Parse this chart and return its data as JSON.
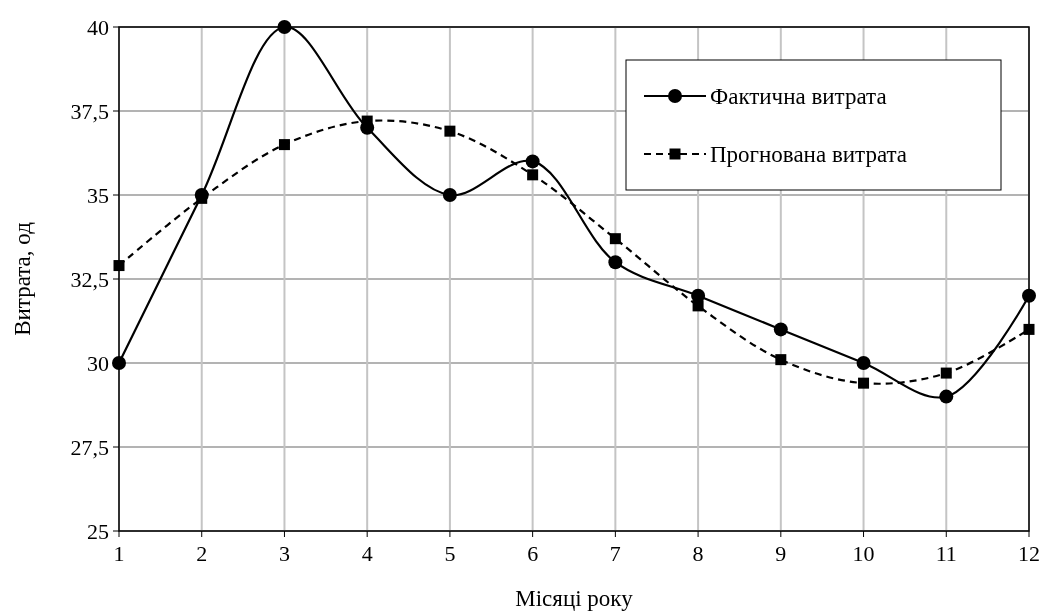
{
  "chart_data": {
    "type": "line",
    "xlabel": "Місяці року",
    "ylabel": "Витрата, од",
    "x": [
      1,
      2,
      3,
      4,
      5,
      6,
      7,
      8,
      9,
      10,
      11,
      12
    ],
    "xlim": [
      1,
      12
    ],
    "xticks": [
      1,
      2,
      3,
      4,
      5,
      6,
      7,
      8,
      9,
      10,
      11,
      12
    ],
    "ylim": [
      25,
      40
    ],
    "yticks": [
      25,
      {
        "value": 27.5,
        "label": "27,5"
      },
      30,
      {
        "value": 32.5,
        "label": "32,5"
      },
      35,
      {
        "value": 37.5,
        "label": "37,5"
      },
      40
    ],
    "grid": true,
    "legend": "top right",
    "series": [
      {
        "name": "Фактична витрата",
        "color": "#000000",
        "marker": "circle",
        "line_style": "solid",
        "values": [
          30,
          35,
          40,
          37,
          35,
          36,
          33,
          32,
          31,
          30,
          29,
          32
        ]
      },
      {
        "name": "Прогнована витрата",
        "color": "#000000",
        "marker": "square",
        "line_style": "dashed",
        "values": [
          32.9,
          34.9,
          36.5,
          37.2,
          36.9,
          35.6,
          33.7,
          31.7,
          30.1,
          29.4,
          29.7,
          31.0
        ]
      }
    ]
  }
}
